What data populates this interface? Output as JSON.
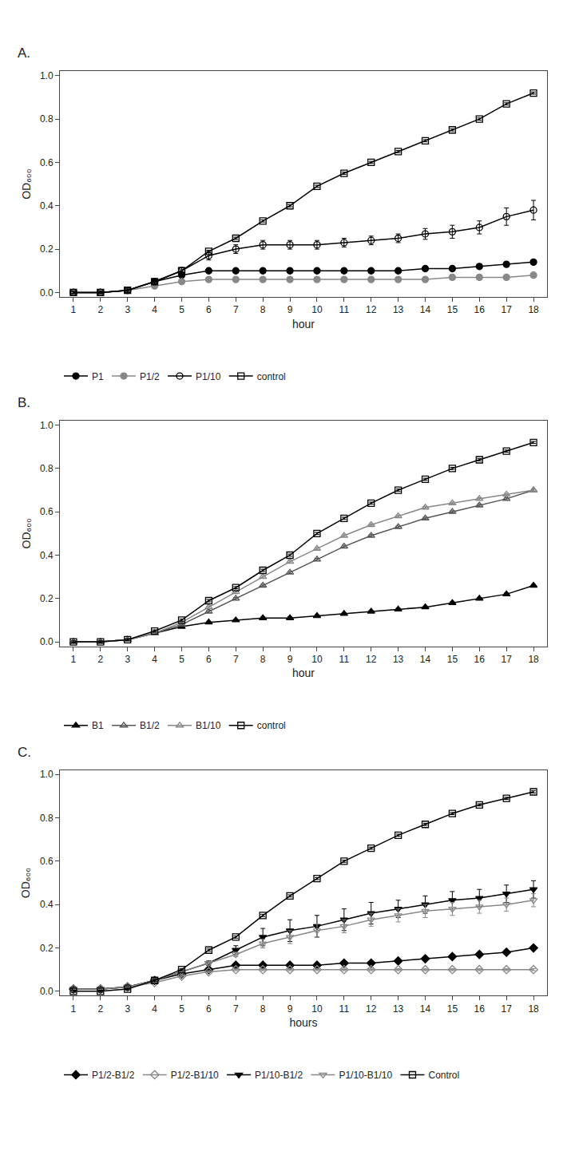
{
  "chart_data": [
    {
      "type": "line",
      "title": "A.",
      "xlabel": "hour",
      "ylabel": "OD₆₀₀",
      "x": [
        1,
        2,
        3,
        4,
        5,
        6,
        7,
        8,
        9,
        10,
        11,
        12,
        13,
        14,
        15,
        16,
        17,
        18
      ],
      "xlim": [
        0.5,
        18.5
      ],
      "xticks": [
        1,
        2,
        3,
        4,
        5,
        6,
        7,
        8,
        9,
        10,
        11,
        12,
        13,
        14,
        15,
        16,
        17,
        18
      ],
      "ylim": [
        -0.02,
        1.02
      ],
      "yticks": [
        {
          "value": 0.0,
          "label": "0.0"
        },
        0.2,
        0.4,
        0.6,
        0.8,
        {
          "value": 1.0,
          "label": "1.0"
        }
      ],
      "grid": false,
      "legend": "below",
      "series": [
        {
          "name": "P1",
          "color": "#000000",
          "marker": "circle",
          "line_style": "solid",
          "values": [
            0.0,
            0.0,
            0.01,
            0.05,
            0.08,
            0.1,
            0.1,
            0.1,
            0.1,
            0.1,
            0.1,
            0.1,
            0.1,
            0.11,
            0.11,
            0.12,
            0.13,
            0.14
          ],
          "errors": [
            0.005,
            0.005,
            0.005,
            0.005,
            0.005,
            0.005,
            0.005,
            0.005,
            0.005,
            0.005,
            0.005,
            0.005,
            0.005,
            0.005,
            0.005,
            0.005,
            0.005,
            0.005
          ]
        },
        {
          "name": "P1/2",
          "color": "#888888",
          "marker": "circle",
          "line_style": "solid",
          "values": [
            0.0,
            0.0,
            0.01,
            0.03,
            0.05,
            0.06,
            0.06,
            0.06,
            0.06,
            0.06,
            0.06,
            0.06,
            0.06,
            0.06,
            0.07,
            0.07,
            0.07,
            0.08
          ],
          "errors": [
            0.005,
            0.005,
            0.005,
            0.005,
            0.005,
            0.005,
            0.005,
            0.005,
            0.005,
            0.005,
            0.005,
            0.005,
            0.005,
            0.005,
            0.005,
            0.005,
            0.005,
            0.005
          ]
        },
        {
          "name": "P1/10",
          "color": "#000000",
          "marker": "circle-open",
          "line_style": "solid",
          "values": [
            0.0,
            0.0,
            0.01,
            0.05,
            0.1,
            0.17,
            0.2,
            0.22,
            0.22,
            0.22,
            0.23,
            0.24,
            0.25,
            0.27,
            0.28,
            0.3,
            0.35,
            0.38
          ],
          "errors": [
            0.005,
            0.005,
            0.01,
            0.01,
            0.015,
            0.02,
            0.02,
            0.02,
            0.02,
            0.02,
            0.02,
            0.02,
            0.02,
            0.025,
            0.03,
            0.03,
            0.04,
            0.045
          ]
        },
        {
          "name": "control",
          "color": "#000000",
          "marker": "square-open",
          "line_style": "solid",
          "values": [
            0.0,
            0.0,
            0.01,
            0.05,
            0.1,
            0.19,
            0.25,
            0.33,
            0.4,
            0.49,
            0.55,
            0.6,
            0.65,
            0.7,
            0.75,
            0.8,
            0.87,
            0.92
          ],
          "errors": [
            0.005,
            0.005,
            0.005,
            0.005,
            0.005,
            0.005,
            0.005,
            0.005,
            0.005,
            0.005,
            0.005,
            0.005,
            0.005,
            0.005,
            0.005,
            0.005,
            0.005,
            0.005
          ]
        }
      ]
    },
    {
      "type": "line",
      "title": "B.",
      "xlabel": "hour",
      "ylabel": "OD₆₀₀",
      "x": [
        1,
        2,
        3,
        4,
        5,
        6,
        7,
        8,
        9,
        10,
        11,
        12,
        13,
        14,
        15,
        16,
        17,
        18
      ],
      "xlim": [
        0.5,
        18.5
      ],
      "xticks": [
        1,
        2,
        3,
        4,
        5,
        6,
        7,
        8,
        9,
        10,
        11,
        12,
        13,
        14,
        15,
        16,
        17,
        18
      ],
      "ylim": [
        -0.02,
        1.02
      ],
      "yticks": [
        {
          "value": 0.0,
          "label": "0.0"
        },
        0.2,
        0.4,
        0.6,
        0.8,
        {
          "value": 1.0,
          "label": "1.0"
        }
      ],
      "grid": false,
      "legend": "below",
      "series": [
        {
          "name": "B1",
          "color": "#000000",
          "marker": "triangle-up",
          "line_style": "solid",
          "values": [
            0.0,
            0.0,
            0.01,
            0.04,
            0.07,
            0.09,
            0.1,
            0.11,
            0.11,
            0.12,
            0.13,
            0.14,
            0.15,
            0.16,
            0.18,
            0.2,
            0.22,
            0.26
          ],
          "errors": [
            0.005,
            0.005,
            0.005,
            0.005,
            0.005,
            0.005,
            0.005,
            0.005,
            0.005,
            0.005,
            0.005,
            0.005,
            0.005,
            0.005,
            0.005,
            0.005,
            0.005,
            0.005
          ]
        },
        {
          "name": "B1/2",
          "color": "#555555",
          "marker": "triangle-up-open",
          "line_style": "solid",
          "values": [
            0.0,
            0.0,
            0.01,
            0.04,
            0.08,
            0.14,
            0.2,
            0.26,
            0.32,
            0.38,
            0.44,
            0.49,
            0.53,
            0.57,
            0.6,
            0.63,
            0.66,
            0.7
          ],
          "errors": [
            0.005,
            0.005,
            0.005,
            0.005,
            0.005,
            0.005,
            0.005,
            0.005,
            0.005,
            0.005,
            0.005,
            0.005,
            0.005,
            0.005,
            0.005,
            0.005,
            0.005,
            0.005
          ]
        },
        {
          "name": "B1/10",
          "color": "#888888",
          "marker": "triangle-up-open",
          "line_style": "solid",
          "values": [
            0.0,
            0.0,
            0.01,
            0.04,
            0.09,
            0.16,
            0.23,
            0.3,
            0.37,
            0.43,
            0.49,
            0.54,
            0.58,
            0.62,
            0.64,
            0.66,
            0.68,
            0.7
          ],
          "errors": [
            0.005,
            0.005,
            0.005,
            0.005,
            0.005,
            0.005,
            0.005,
            0.005,
            0.005,
            0.005,
            0.005,
            0.005,
            0.005,
            0.005,
            0.005,
            0.005,
            0.005,
            0.005
          ]
        },
        {
          "name": "control",
          "color": "#000000",
          "marker": "square-open",
          "line_style": "solid",
          "values": [
            0.0,
            0.0,
            0.01,
            0.05,
            0.1,
            0.19,
            0.25,
            0.33,
            0.4,
            0.5,
            0.57,
            0.64,
            0.7,
            0.75,
            0.8,
            0.84,
            0.88,
            0.92
          ],
          "errors": [
            0.005,
            0.005,
            0.005,
            0.005,
            0.005,
            0.005,
            0.005,
            0.005,
            0.005,
            0.005,
            0.005,
            0.005,
            0.005,
            0.005,
            0.005,
            0.005,
            0.005,
            0.005
          ]
        }
      ]
    },
    {
      "type": "line",
      "title": "C.",
      "xlabel": "hours",
      "ylabel": "OD₆₀₀",
      "x": [
        1,
        2,
        3,
        4,
        5,
        6,
        7,
        8,
        9,
        10,
        11,
        12,
        13,
        14,
        15,
        16,
        17,
        18
      ],
      "xlim": [
        0.5,
        18.5
      ],
      "xticks": [
        1,
        2,
        3,
        4,
        5,
        6,
        7,
        8,
        9,
        10,
        11,
        12,
        13,
        14,
        15,
        16,
        17,
        18
      ],
      "ylim": [
        -0.02,
        1.02
      ],
      "yticks": [
        {
          "value": 0.0,
          "label": "0.0"
        },
        0.2,
        0.4,
        0.6,
        0.8,
        {
          "value": 1.0,
          "label": "1.0"
        }
      ],
      "grid": false,
      "legend": "below",
      "series": [
        {
          "name": "P1/2-B1/2",
          "color": "#000000",
          "marker": "diamond",
          "line_style": "solid",
          "values": [
            0.01,
            0.01,
            0.02,
            0.05,
            0.08,
            0.1,
            0.12,
            0.12,
            0.12,
            0.12,
            0.13,
            0.13,
            0.14,
            0.15,
            0.16,
            0.17,
            0.18,
            0.2
          ],
          "errors": [
            0.005,
            0.005,
            0.005,
            0.005,
            0.005,
            0.005,
            0.005,
            0.005,
            0.005,
            0.005,
            0.005,
            0.005,
            0.005,
            0.005,
            0.005,
            0.005,
            0.005,
            0.005
          ]
        },
        {
          "name": "P1/2-B1/10",
          "color": "#888888",
          "marker": "diamond-open",
          "line_style": "solid",
          "values": [
            0.01,
            0.01,
            0.02,
            0.04,
            0.07,
            0.09,
            0.1,
            0.1,
            0.1,
            0.1,
            0.1,
            0.1,
            0.1,
            0.1,
            0.1,
            0.1,
            0.1,
            0.1
          ],
          "errors": [
            0.005,
            0.005,
            0.005,
            0.005,
            0.005,
            0.005,
            0.005,
            0.005,
            0.005,
            0.005,
            0.005,
            0.005,
            0.005,
            0.005,
            0.005,
            0.005,
            0.005,
            0.005
          ]
        },
        {
          "name": "P1/10-B1/2",
          "color": "#000000",
          "marker": "triangle-down",
          "line_style": "solid",
          "values": [
            0.01,
            0.01,
            0.02,
            0.05,
            0.09,
            0.13,
            0.19,
            0.25,
            0.28,
            0.3,
            0.33,
            0.36,
            0.38,
            0.4,
            0.42,
            0.43,
            0.45,
            0.47
          ],
          "errors": [
            0.01,
            0.01,
            0.01,
            0.01,
            0.01,
            0.01,
            0.02,
            0.04,
            0.05,
            0.05,
            0.05,
            0.05,
            0.04,
            0.04,
            0.04,
            0.04,
            0.04,
            0.04
          ]
        },
        {
          "name": "P1/10-B1/10",
          "color": "#888888",
          "marker": "triangle-down-open",
          "line_style": "solid",
          "values": [
            0.01,
            0.01,
            0.02,
            0.05,
            0.09,
            0.13,
            0.17,
            0.22,
            0.25,
            0.28,
            0.3,
            0.33,
            0.35,
            0.37,
            0.38,
            0.39,
            0.4,
            0.42
          ],
          "errors": [
            0.005,
            0.005,
            0.005,
            0.005,
            0.005,
            0.005,
            0.01,
            0.02,
            0.03,
            0.03,
            0.03,
            0.03,
            0.03,
            0.03,
            0.03,
            0.03,
            0.03,
            0.03
          ]
        },
        {
          "name": "Control",
          "color": "#000000",
          "marker": "square-open",
          "line_style": "solid",
          "values": [
            0.0,
            0.0,
            0.01,
            0.05,
            0.1,
            0.19,
            0.25,
            0.35,
            0.44,
            0.52,
            0.6,
            0.66,
            0.72,
            0.77,
            0.82,
            0.86,
            0.89,
            0.92
          ],
          "errors": [
            0.005,
            0.005,
            0.005,
            0.005,
            0.005,
            0.005,
            0.005,
            0.005,
            0.005,
            0.005,
            0.005,
            0.005,
            0.005,
            0.005,
            0.005,
            0.005,
            0.005,
            0.005
          ]
        }
      ]
    }
  ]
}
